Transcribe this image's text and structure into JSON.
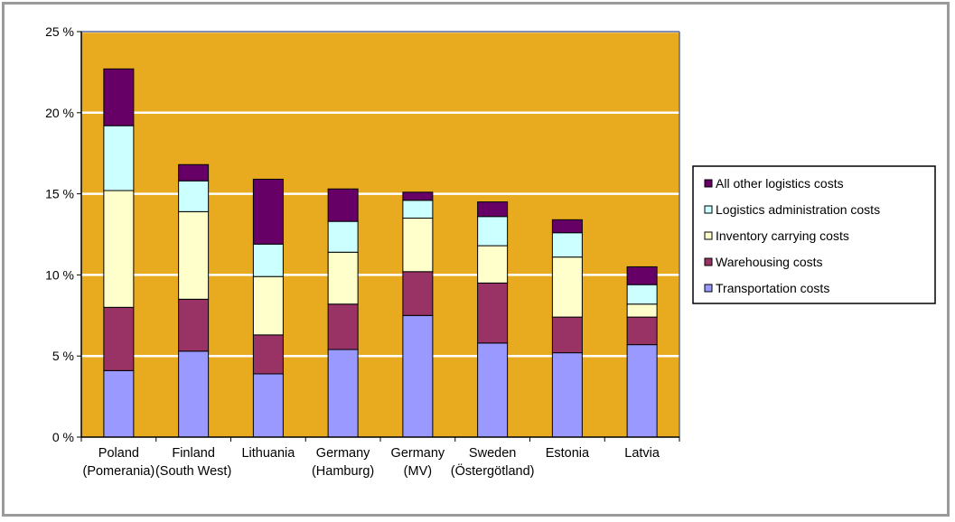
{
  "chart_data": {
    "type": "bar",
    "stacked": true,
    "title": "",
    "xlabel": "",
    "ylabel": "",
    "ylim": [
      0,
      25
    ],
    "yticks": [
      0,
      5,
      10,
      15,
      20,
      25
    ],
    "ytick_labels": [
      "0 %",
      "5 %",
      "10 %",
      "15 %",
      "20 %",
      "25 %"
    ],
    "grid": true,
    "legend_position": "right",
    "plot_background": "#E8AA1E",
    "categories": [
      [
        "Poland",
        "(Pomerania)"
      ],
      [
        "Finland",
        "(South West)"
      ],
      [
        "Lithuania"
      ],
      [
        "Germany",
        "(Hamburg)"
      ],
      [
        "Germany",
        "(MV)"
      ],
      [
        "Sweden",
        "(Östergötland)"
      ],
      [
        "Estonia"
      ],
      [
        "Latvia"
      ]
    ],
    "series": [
      {
        "name": "Transportation costs",
        "color": "#9999FF",
        "values": [
          4.1,
          5.3,
          3.9,
          5.4,
          7.5,
          5.8,
          5.2,
          5.7
        ]
      },
      {
        "name": "Warehousing costs",
        "color": "#993366",
        "values": [
          3.9,
          3.2,
          2.4,
          2.8,
          2.7,
          3.7,
          2.2,
          1.7
        ]
      },
      {
        "name": "Inventory carrying costs",
        "color": "#FFFFCC",
        "values": [
          7.2,
          5.4,
          3.6,
          3.2,
          3.3,
          2.3,
          3.7,
          0.8
        ]
      },
      {
        "name": "Logistics administration costs",
        "color": "#CCFFFF",
        "values": [
          4.0,
          1.9,
          2.0,
          1.9,
          1.1,
          1.8,
          1.5,
          1.2
        ]
      },
      {
        "name": "All other logistics costs",
        "color": "#660066",
        "values": [
          3.5,
          1.0,
          4.0,
          2.0,
          0.5,
          0.9,
          0.8,
          1.1
        ]
      }
    ],
    "legend_order": [
      4,
      3,
      2,
      1,
      0
    ]
  }
}
